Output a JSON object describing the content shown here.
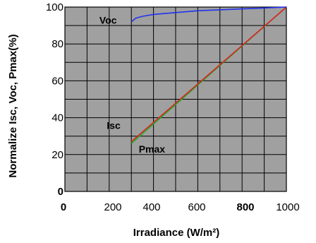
{
  "chart_data": {
    "type": "line",
    "title": "",
    "xlabel": "Irradiance (W/m²)",
    "ylabel": "Normalize Isc, Voc, Pmax(%)",
    "xlim": [
      0,
      1000
    ],
    "ylim": [
      0,
      100
    ],
    "x_ticks": [
      "0",
      "200",
      "400",
      "600",
      "800",
      "1000"
    ],
    "y_ticks": [
      "0",
      "20",
      "40",
      "60",
      "80",
      "100"
    ],
    "grid": true,
    "background": "#a0a0a0",
    "series": [
      {
        "name": "Voc",
        "color": "#2233ee",
        "x": [
          300,
          320,
          350,
          400,
          500,
          600,
          700,
          800,
          900,
          1000
        ],
        "y": [
          92,
          94,
          95,
          96,
          97,
          98,
          98.5,
          99,
          99.5,
          100
        ]
      },
      {
        "name": "Isc",
        "color": "#dd2222",
        "x": [
          300,
          1000
        ],
        "y": [
          27,
          100
        ]
      },
      {
        "name": "Pmax",
        "color": "#22aa22",
        "x": [
          300,
          1000
        ],
        "y": [
          26,
          100
        ]
      }
    ],
    "annotations": [
      {
        "text": "Voc",
        "x": 195,
        "y": 91
      },
      {
        "text": "Isc",
        "x": 220,
        "y": 34
      },
      {
        "text": "Pmax",
        "x": 393,
        "y": 21
      }
    ]
  }
}
